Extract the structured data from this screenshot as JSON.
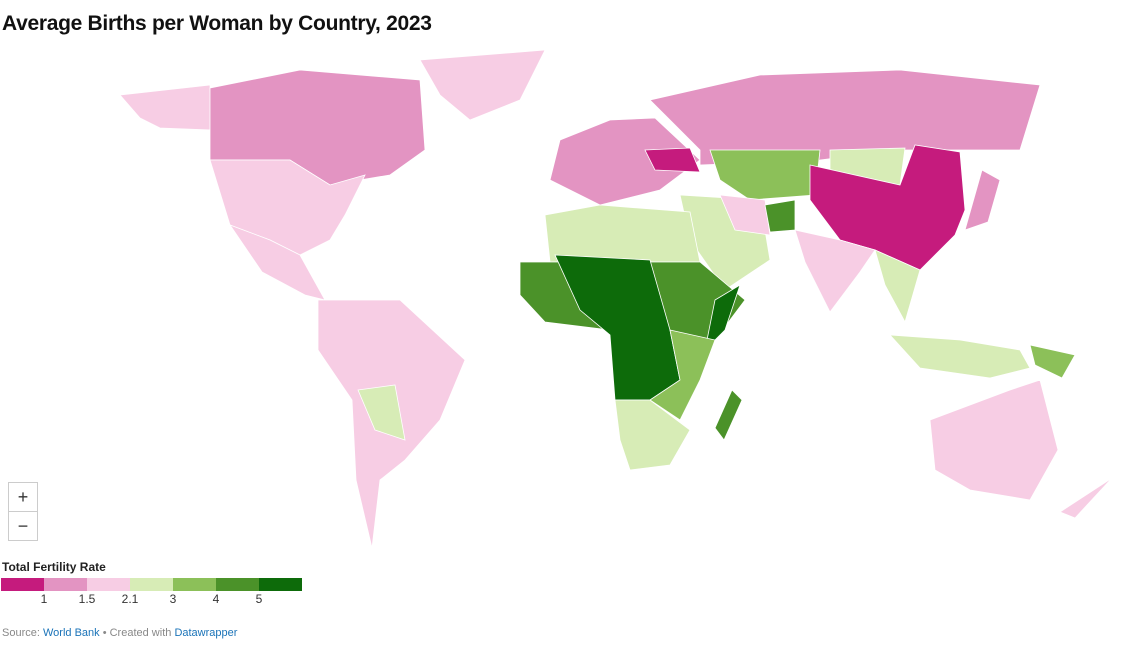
{
  "header": {
    "title": "Average Births per Woman by Country, 2023"
  },
  "zoom": {
    "in": "+",
    "out": "−"
  },
  "legend": {
    "title": "Total Fertility Rate",
    "colors": [
      "#c51b7d",
      "#e394c2",
      "#f7cde4",
      "#d7ecb6",
      "#8cc059",
      "#4b9229",
      "#0d6b0a"
    ],
    "ticks": [
      1,
      1.5,
      2.1,
      3,
      4,
      5
    ]
  },
  "footer": {
    "source_label": "Source:",
    "source": "World Bank",
    "created": "• Created with",
    "tool": "Datawrapper"
  }
}
